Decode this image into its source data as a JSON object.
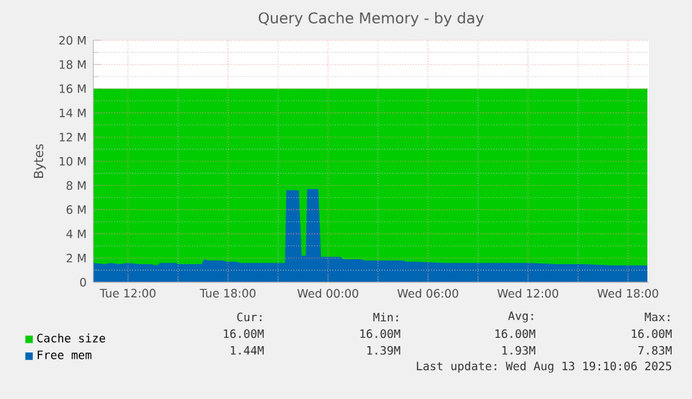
{
  "chart_data": {
    "type": "area",
    "title": "Query Cache Memory - by day",
    "ylabel": "Bytes",
    "xlim": [
      "2025-08-12T09:55",
      "2025-08-13T19:15"
    ],
    "ylim": [
      0,
      20
    ],
    "xticks": [
      {
        "value": "2025-08-12T12:00",
        "label": "Tue 12:00"
      },
      {
        "value": "2025-08-12T18:00",
        "label": "Tue 18:00"
      },
      {
        "value": "2025-08-13T00:00",
        "label": "Wed 00:00"
      },
      {
        "value": "2025-08-13T06:00",
        "label": "Wed 06:00"
      },
      {
        "value": "2025-08-13T12:00",
        "label": "Wed 12:00"
      },
      {
        "value": "2025-08-13T18:00",
        "label": "Wed 18:00"
      }
    ],
    "yticks": [
      0,
      {
        "value": 2,
        "label": "2 M"
      },
      {
        "value": 4,
        "label": "4 M"
      },
      {
        "value": 6,
        "label": "6 M"
      },
      {
        "value": 8,
        "label": "8 M"
      },
      {
        "value": 10,
        "label": "10 M"
      },
      {
        "value": 12,
        "label": "12 M"
      },
      {
        "value": 14,
        "label": "14 M"
      },
      {
        "value": 16,
        "label": "16 M"
      },
      {
        "value": 18,
        "label": "18 M"
      },
      {
        "value": 20,
        "label": "20 M"
      }
    ],
    "grid": true,
    "legend": "bottom",
    "series": [
      {
        "name": "Cache size",
        "color": "#00cc00",
        "x": [
          "2025-08-12T09:55",
          "2025-08-13T19:10"
        ],
        "values": [
          16,
          16
        ]
      },
      {
        "name": "Free mem",
        "color": "#0066b3",
        "x": [
          "2025-08-12T09:55",
          "2025-08-12T10:35",
          "2025-08-12T11:00",
          "2025-08-12T11:25",
          "2025-08-12T12:00",
          "2025-08-12T12:40",
          "2025-08-12T13:20",
          "2025-08-12T13:45",
          "2025-08-12T13:55",
          "2025-08-12T14:55",
          "2025-08-12T15:00",
          "2025-08-12T16:25",
          "2025-08-12T16:35",
          "2025-08-12T16:50",
          "2025-08-12T17:40",
          "2025-08-12T17:55",
          "2025-08-12T18:30",
          "2025-08-12T18:45",
          "2025-08-12T20:35",
          "2025-08-12T21:25",
          "2025-08-12T21:30",
          "2025-08-12T22:15",
          "2025-08-12T22:25",
          "2025-08-12T22:40",
          "2025-08-12T22:45",
          "2025-08-12T23:25",
          "2025-08-12T23:35",
          "2025-08-13T00:45",
          "2025-08-13T00:55",
          "2025-08-13T02:00",
          "2025-08-13T02:10",
          "2025-08-13T04:30",
          "2025-08-13T04:40",
          "2025-08-13T05:20",
          "2025-08-13T07:00",
          "2025-08-13T09:30",
          "2025-08-13T12:00",
          "2025-08-13T13:40",
          "2025-08-13T15:20",
          "2025-08-13T17:00",
          "2025-08-13T19:10"
        ],
        "values": [
          1.6,
          1.5,
          1.6,
          1.5,
          1.6,
          1.5,
          1.5,
          1.4,
          1.6,
          1.6,
          1.5,
          1.5,
          1.9,
          1.8,
          1.8,
          1.7,
          1.7,
          1.6,
          1.6,
          1.6,
          7.6,
          7.6,
          2.2,
          2.2,
          7.7,
          7.7,
          2.1,
          2.1,
          1.9,
          1.9,
          1.8,
          1.8,
          1.7,
          1.7,
          1.6,
          1.6,
          1.6,
          1.5,
          1.5,
          1.4,
          1.4
        ]
      }
    ],
    "annotations": [
      "Cur:",
      "Min:",
      "Avg:",
      "Max:",
      "16.00M",
      "16.00M",
      "16.00M",
      "16.00M",
      "1.44M",
      "1.39M",
      "1.93M",
      "7.83M",
      "Last update: Wed Aug 13 19:10:06 2025"
    ]
  }
}
